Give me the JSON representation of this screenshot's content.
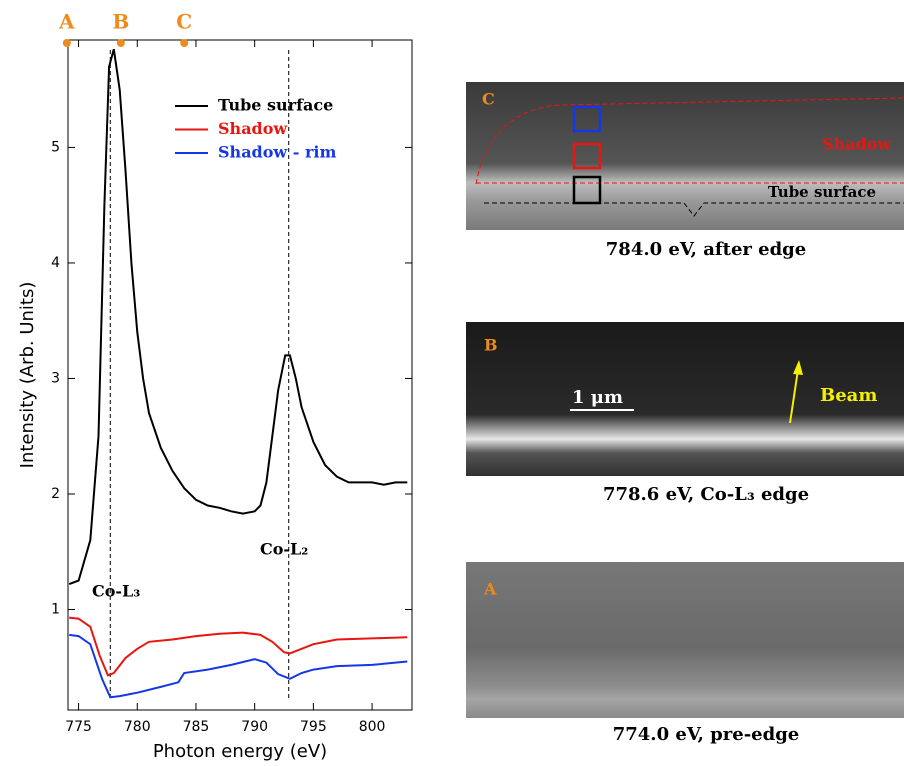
{
  "chart_data": {
    "type": "line",
    "xlabel": "Photon energy (eV)",
    "ylabel": "Intensity (Arb. Units)",
    "xlim": [
      774.1,
      803.4
    ],
    "xticks": [
      775,
      780,
      785,
      790,
      795,
      800
    ],
    "ylim": [
      0.13,
      5.93
    ],
    "yticks": [
      1,
      2,
      3,
      4,
      5
    ],
    "legend": "upper right",
    "series": [
      {
        "name": "Tube surface",
        "color": "#000000",
        "x": [
          774.2,
          775,
          776,
          776.7,
          777.2,
          777.6,
          778,
          778.5,
          779,
          779.5,
          780,
          780.5,
          781,
          782,
          783,
          784,
          785,
          786,
          787,
          788,
          789,
          790,
          790.5,
          791,
          791.5,
          792,
          792.6,
          793,
          793.5,
          794,
          795,
          796,
          797,
          798,
          799,
          800,
          801,
          802,
          803
        ],
        "values": [
          1.22,
          1.25,
          1.6,
          2.5,
          4.5,
          5.7,
          5.85,
          5.5,
          4.8,
          4.0,
          3.4,
          3.0,
          2.7,
          2.4,
          2.2,
          2.05,
          1.95,
          1.9,
          1.88,
          1.85,
          1.83,
          1.85,
          1.9,
          2.1,
          2.5,
          2.9,
          3.2,
          3.2,
          3.0,
          2.75,
          2.45,
          2.25,
          2.15,
          2.1,
          2.1,
          2.1,
          2.08,
          2.1,
          2.1
        ]
      },
      {
        "name": "Shadow",
        "color": "#e8160f",
        "x": [
          774.2,
          775,
          776,
          776.8,
          777.5,
          778,
          779,
          780,
          781,
          783,
          785,
          787,
          789,
          790.5,
          791.5,
          792.5,
          793,
          794,
          795,
          797,
          800,
          803
        ],
        "values": [
          0.93,
          0.92,
          0.85,
          0.6,
          0.43,
          0.45,
          0.58,
          0.66,
          0.72,
          0.74,
          0.77,
          0.79,
          0.8,
          0.78,
          0.72,
          0.63,
          0.62,
          0.66,
          0.7,
          0.74,
          0.75,
          0.76
        ]
      },
      {
        "name": "Shadow - rim",
        "color": "#1537e6",
        "x": [
          774.2,
          775,
          776,
          777,
          777.7,
          778.5,
          780,
          782,
          783.5,
          784,
          786,
          788,
          790,
          791,
          792,
          793,
          794,
          795,
          797,
          800,
          803
        ],
        "values": [
          0.78,
          0.77,
          0.7,
          0.4,
          0.24,
          0.25,
          0.28,
          0.33,
          0.37,
          0.45,
          0.48,
          0.52,
          0.57,
          0.54,
          0.44,
          0.4,
          0.45,
          0.48,
          0.51,
          0.52,
          0.55
        ]
      }
    ],
    "vlines": [
      777.7,
      792.9
    ],
    "annotations": [
      "Co-L₃",
      "Co-L₂"
    ],
    "top_markers": [
      {
        "label": "A",
        "x": 774.0
      },
      {
        "label": "B",
        "x": 778.6
      },
      {
        "label": "C",
        "x": 784.0
      }
    ],
    "marker_color": "#ef8a1c"
  },
  "panels": [
    {
      "letter": "C",
      "caption": "784.0 eV, after edge",
      "labels": [
        "Shadow",
        "Tube surface"
      ]
    },
    {
      "letter": "B",
      "caption": "778.6 eV, Co-L₃ edge",
      "labels": [
        "1 μm",
        "Beam"
      ]
    },
    {
      "letter": "A",
      "caption": "774.0 eV, pre-edge",
      "labels": []
    }
  ]
}
